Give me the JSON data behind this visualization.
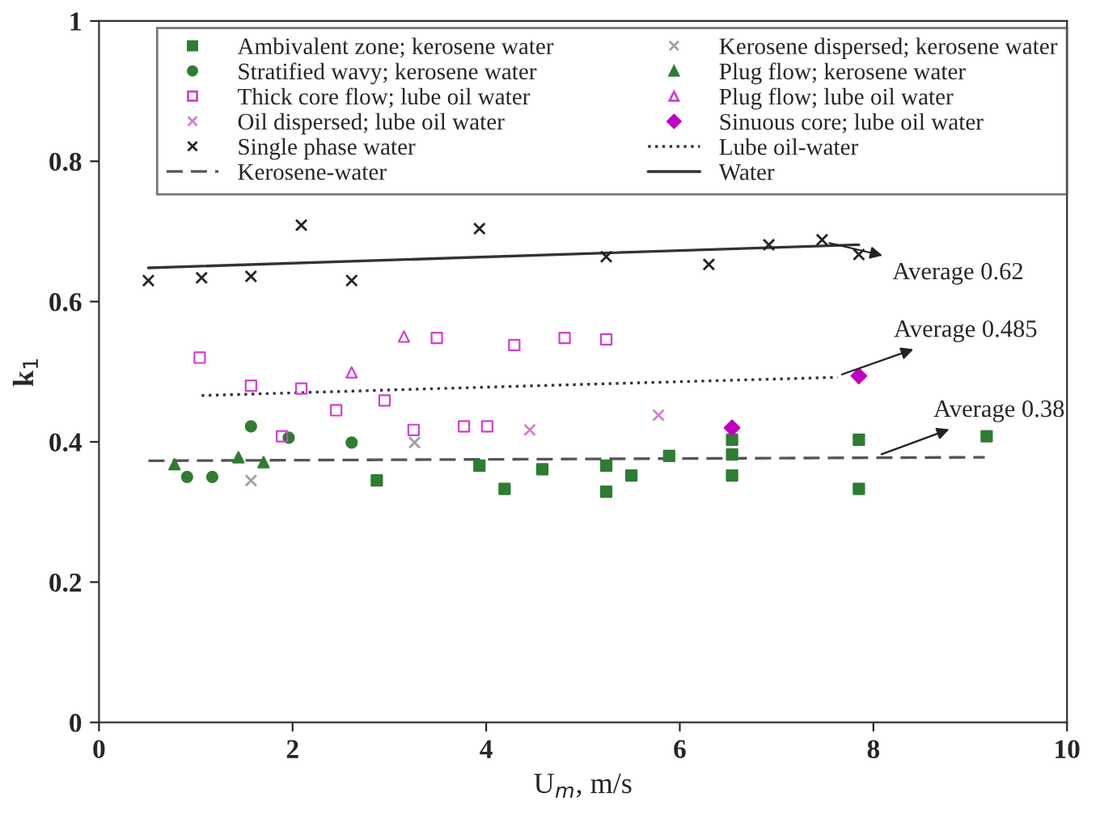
{
  "chart_data": {
    "type": "scatter",
    "xlabel": "U$_{m}$, m/s",
    "ylabel": "k$_{1}$",
    "xlim": [
      0,
      10
    ],
    "ylim": [
      0,
      1
    ],
    "xticks": [
      0,
      2,
      4,
      6,
      8,
      10
    ],
    "yticks": [
      0,
      0.2,
      0.4,
      0.6,
      0.8,
      1
    ],
    "grid": false,
    "legend": "top",
    "series": [
      {
        "name": "Ambivalent zone; kerosene water",
        "color": "#2e7d32",
        "marker": "square",
        "x": [
          2.87,
          3.93,
          4.19,
          4.58,
          5.24,
          5.24,
          5.5,
          5.89,
          6.54,
          6.54,
          6.54,
          7.85,
          7.85,
          9.17
        ],
        "values": [
          0.345,
          0.366,
          0.333,
          0.361,
          0.366,
          0.329,
          0.352,
          0.38,
          0.352,
          0.382,
          0.403,
          0.403,
          0.333,
          0.408
        ]
      },
      {
        "name": "Stratified wavy; kerosene water",
        "color": "#2e7d32",
        "marker": "circle",
        "x": [
          0.91,
          1.17,
          1.57,
          1.96,
          2.61
        ],
        "values": [
          0.35,
          0.35,
          0.422,
          0.406,
          0.399
        ]
      },
      {
        "name": "Thick core flow; lube oil water",
        "color": "#d040d0",
        "marker": "square_open",
        "x": [
          1.04,
          1.57,
          1.89,
          2.09,
          2.45,
          2.95,
          3.25,
          3.49,
          3.77,
          4.01,
          4.29,
          4.81,
          5.24
        ],
        "values": [
          0.52,
          0.48,
          0.408,
          0.476,
          0.445,
          0.459,
          0.417,
          0.548,
          0.422,
          0.422,
          0.538,
          0.548,
          0.546
        ]
      },
      {
        "name": "Oil dispersed; lube oil water",
        "color": "#d080d0",
        "marker": "cross",
        "x": [
          4.45,
          5.78
        ],
        "values": [
          0.417,
          0.438
        ]
      },
      {
        "name": "Single phase water",
        "color": "#222222",
        "marker": "cross",
        "x": [
          0.51,
          1.06,
          1.57,
          2.09,
          2.61,
          3.93,
          5.24,
          6.3,
          6.92,
          7.47,
          7.85
        ],
        "values": [
          0.63,
          0.634,
          0.636,
          0.709,
          0.63,
          0.704,
          0.664,
          0.653,
          0.681,
          0.688,
          0.667
        ]
      },
      {
        "name": "Kerosene-water",
        "type": "line",
        "line_style": "dashed",
        "marker": "none",
        "color": "#555555",
        "x": [
          0.51,
          9.15
        ],
        "values": [
          0.373,
          0.378
        ]
      },
      {
        "name": "Kerosene dispersed; kerosene water",
        "color": "#a0a0a0",
        "marker": "cross",
        "x": [
          1.57,
          3.26
        ],
        "values": [
          0.345,
          0.399
        ]
      },
      {
        "name": "Plug flow; kerosene water",
        "color": "#2e7d32",
        "marker": "triangle",
        "x": [
          0.78,
          1.44,
          1.7
        ],
        "values": [
          0.368,
          0.378,
          0.371
        ]
      },
      {
        "name": "Plug flow; lube oil water",
        "color": "#d040d0",
        "marker": "triangle_open",
        "x": [
          2.61,
          3.15
        ],
        "values": [
          0.499,
          0.55
        ]
      },
      {
        "name": "Sinuous core; lube oil water",
        "color": "#c000c0",
        "marker": "diamond",
        "x": [
          6.54,
          7.85
        ],
        "values": [
          0.42,
          0.494
        ]
      },
      {
        "name": "Lube oil-water",
        "type": "line",
        "line_style": "dotted",
        "marker": "none",
        "color": "#333333",
        "x": [
          1.06,
          4.5,
          7.63
        ],
        "values": [
          0.466,
          0.48,
          0.492
        ]
      },
      {
        "name": "Water",
        "type": "line",
        "line_style": "solid",
        "marker": "none",
        "color": "#333333",
        "x": [
          0.51,
          7.85
        ],
        "values": [
          0.648,
          0.681
        ]
      }
    ],
    "annotations": [
      {
        "text": "Average 0.62",
        "x": 7.5,
        "y": 0.685
      },
      {
        "text": "Average 0.485",
        "x": 7.63,
        "y": 0.494
      },
      {
        "text": "Average 0.38",
        "x": 8.04,
        "y": 0.38
      }
    ]
  }
}
